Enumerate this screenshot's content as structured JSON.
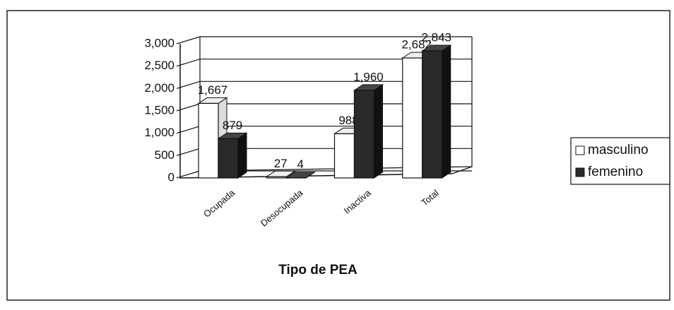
{
  "chart_data": {
    "type": "bar3d",
    "xlabel": "Tipo de PEA",
    "categories": [
      "Ocupada",
      "Desocupada",
      "Inactiva",
      "Total"
    ],
    "series": [
      {
        "name": "masculino",
        "color": "#ffffff",
        "values": [
          1667,
          27,
          988,
          2682
        ],
        "value_labels": [
          "1,667",
          "27",
          "988",
          "2,682"
        ]
      },
      {
        "name": "femenino",
        "color": "#2a2a2a",
        "values": [
          879,
          4,
          1960,
          2843
        ],
        "value_labels": [
          "879",
          "4",
          "1,960",
          "2,843"
        ]
      }
    ],
    "ylim": [
      0,
      3000
    ],
    "yticks": [
      0,
      500,
      {
        "value": 1000,
        "label": "1,000"
      },
      {
        "value": 1500,
        "label": "1,500"
      },
      {
        "value": 2000,
        "label": "2,000"
      },
      {
        "value": 2500,
        "label": "2,500"
      },
      {
        "value": 3000,
        "label": "3,000"
      }
    ],
    "grid": true,
    "legend": "right"
  }
}
